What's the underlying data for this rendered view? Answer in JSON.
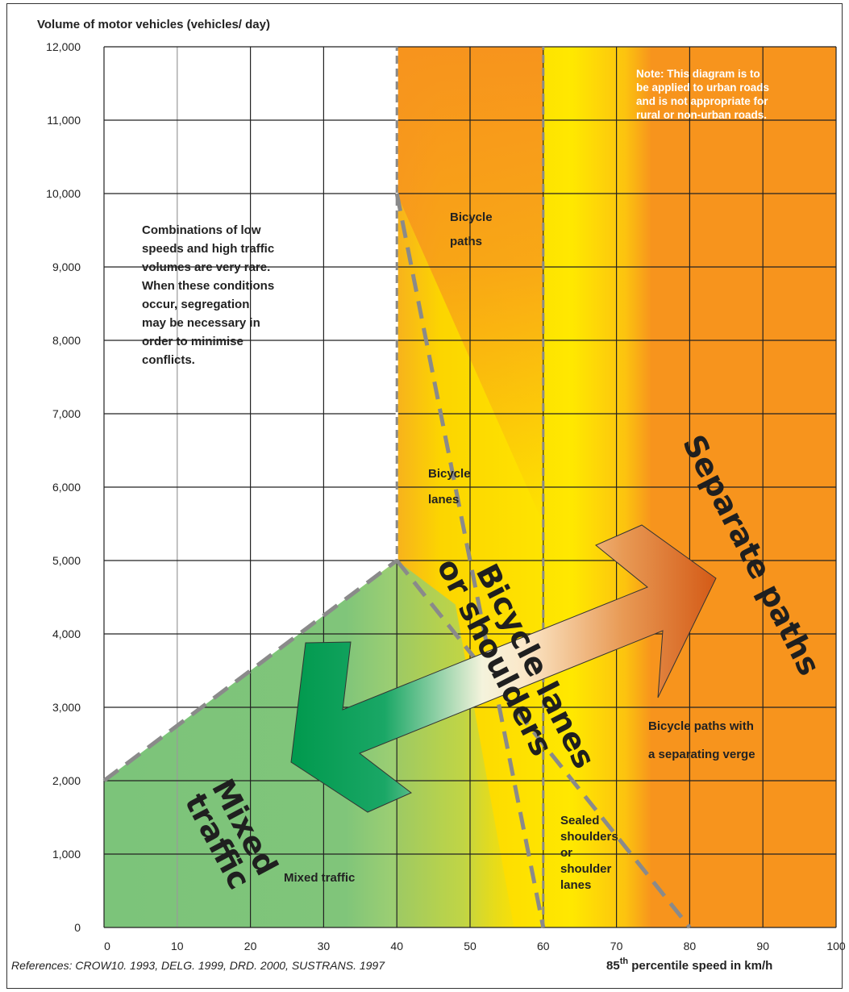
{
  "chart_data": {
    "type": "area",
    "title": "",
    "ylabel": "Volume of motor vehicles (vehicles/ day)",
    "xlabel_base": "85",
    "xlabel_sup": "th",
    "xlabel_rest": " percentile speed in km/h",
    "xlim": [
      0,
      100
    ],
    "ylim": [
      0,
      12000
    ],
    "x_ticks": [
      "0",
      "10",
      "20",
      "30",
      "40",
      "50",
      "60",
      "70",
      "80",
      "90",
      "100"
    ],
    "y_ticks": [
      "0",
      "1,000",
      "2,000",
      "3,000",
      "4,000",
      "5,000",
      "6,000",
      "7,000",
      "8,000",
      "9,000",
      "10,000",
      "11,000",
      "12,000"
    ],
    "boundaries": [
      {
        "x": [
          0,
          40
        ],
        "y": [
          2000,
          5000
        ]
      },
      {
        "x": [
          40,
          40
        ],
        "y": [
          5000,
          12000
        ]
      },
      {
        "x": [
          40,
          60
        ],
        "y": [
          10000,
          0
        ]
      },
      {
        "x": [
          60,
          60
        ],
        "y": [
          0,
          12000
        ]
      },
      {
        "x": [
          40,
          80
        ],
        "y": [
          5000,
          0
        ]
      }
    ],
    "zones": [
      {
        "name": "Mixed traffic",
        "color": "#86c67a"
      },
      {
        "name": "Bicycle lanes or shoulders",
        "color": "#ffe600"
      },
      {
        "name": "Separate paths",
        "color": "#f7941d"
      }
    ],
    "zone_labels": {
      "mixed_big": [
        "Mixed",
        "traffic"
      ],
      "lanes_big": [
        "Bicycle lanes",
        "or shoulders"
      ],
      "separate_big": "Separate paths"
    },
    "annotations": {
      "bicycle_paths": [
        "Bicycle",
        "paths"
      ],
      "bicycle_lanes": [
        "Bicycle",
        "lanes"
      ],
      "mixed_traffic": "Mixed traffic",
      "sealed_shoulders": [
        "Sealed",
        "shoulders",
        "or",
        "shoulder",
        "lanes"
      ],
      "paths_verge": [
        "Bicycle paths with",
        "a separating verge"
      ],
      "rare": [
        "Combinations of low",
        "speeds and high traffic",
        "volumes are very rare.",
        "When these conditions",
        "occur, segregation",
        "may be necessary in",
        "order to minimise",
        "conflicts."
      ],
      "note": [
        "Note: This diagram is to",
        "be applied to urban roads",
        "and is not appropriate for",
        "rural or non-urban roads."
      ]
    },
    "references": "References:  CROW10. 1993, DELG. 1999, DRD. 2000, SUSTRANS. 1997",
    "grid": true
  }
}
